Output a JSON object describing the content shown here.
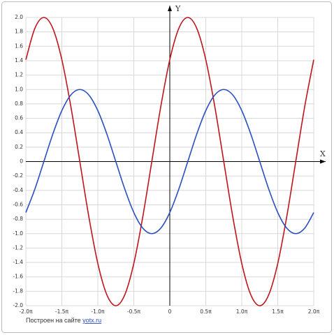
{
  "chart_data": {
    "type": "line",
    "x_label": "X",
    "y_label": "Y",
    "x": [
      -2,
      -1.875,
      -1.75,
      -1.625,
      -1.5,
      -1.375,
      -1.25,
      -1.125,
      -1,
      -0.875,
      -0.75,
      -0.625,
      -0.5,
      -0.375,
      -0.25,
      -0.125,
      0,
      0.125,
      0.25,
      0.375,
      0.5,
      0.625,
      0.75,
      0.875,
      1,
      1.125,
      1.25,
      1.375,
      1.5,
      1.625,
      1.75,
      1.875,
      2
    ],
    "series": [
      {
        "color": "#c0141c",
        "values": [
          1.414,
          1.848,
          2,
          1.848,
          1.414,
          0.765,
          0,
          -0.765,
          -1.414,
          -1.848,
          -2,
          -1.848,
          -1.414,
          -0.765,
          0,
          0.765,
          1.414,
          1.848,
          2,
          1.848,
          1.414,
          0.765,
          0,
          -0.765,
          -1.414,
          -1.848,
          -2,
          -1.848,
          -1.414,
          -0.765,
          0,
          0.765,
          1.414
        ]
      },
      {
        "color": "#2a4fc0",
        "values": [
          -0.707,
          -0.383,
          0,
          0.383,
          0.707,
          0.924,
          1,
          0.924,
          0.707,
          0.383,
          0,
          -0.383,
          -0.707,
          -0.924,
          -1,
          -0.924,
          -0.707,
          -0.383,
          0,
          0.383,
          0.707,
          0.924,
          1,
          0.924,
          0.707,
          0.383,
          0,
          -0.383,
          -0.707,
          -0.924,
          -1,
          -0.924,
          -0.707
        ]
      }
    ],
    "xlim": [
      -2,
      2
    ],
    "xticks": [
      {
        "value": -2,
        "label": "-2.0π"
      },
      {
        "value": -1.5,
        "label": "-1.5π"
      },
      {
        "value": -1,
        "label": "-1.0π"
      },
      {
        "value": -0.5,
        "label": "-0.5π"
      },
      0,
      {
        "value": 0.5,
        "label": "0.5π"
      },
      {
        "value": 1,
        "label": "1.0π"
      },
      {
        "value": 1.5,
        "label": "1.5π"
      },
      {
        "value": 2,
        "label": "2.0π"
      }
    ],
    "ylim": [
      -2,
      2
    ],
    "yticks": [
      {
        "value": 2,
        "label": "2.0"
      },
      1.8,
      1.6,
      1.4,
      1.2,
      {
        "value": 1,
        "label": "1.0"
      },
      0.8,
      0.6,
      0.4,
      0.2,
      0,
      -0.2,
      -0.4,
      -0.6,
      -0.8,
      {
        "value": -1,
        "label": "-1.0"
      },
      -1.2,
      -1.4,
      -1.6,
      -1.8,
      {
        "value": -2,
        "label": "-2.0"
      }
    ],
    "grid": true,
    "credit": {
      "text": "Построен на сайте",
      "link": "yotx.ru"
    }
  }
}
